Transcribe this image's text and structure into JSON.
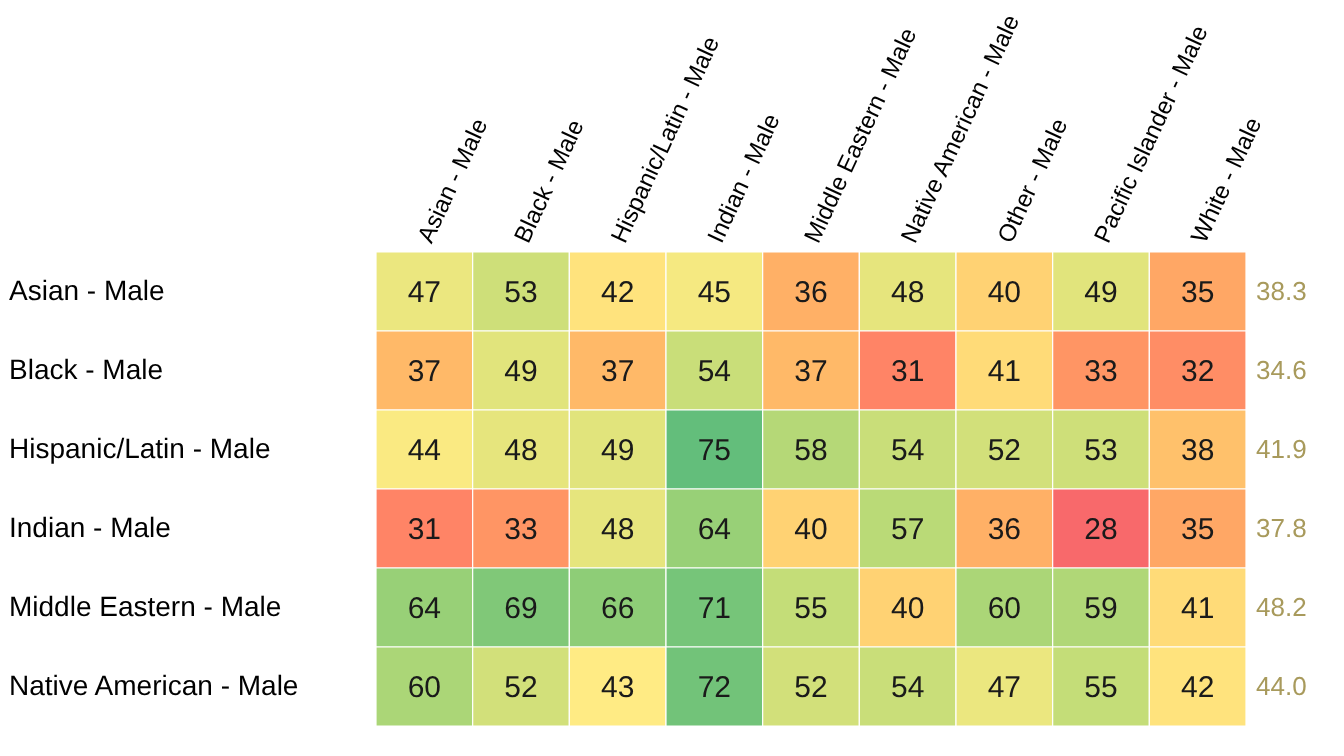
{
  "chart_data": {
    "type": "heatmap",
    "categories": [
      "Asian - Male",
      "Black - Male",
      "Hispanic/Latin - Male",
      "Indian - Male",
      "Middle Eastern - Male",
      "Native American - Male",
      "Other - Male",
      "Pacific Islander - Male",
      "White - Male"
    ],
    "y_categories": [
      "Asian - Male",
      "Black - Male",
      "Hispanic/Latin - Male",
      "Indian - Male",
      "Middle Eastern - Male",
      "Native American - Male"
    ],
    "y2_categories": [
      "38.3",
      "34.6",
      "41.9",
      "37.8",
      "48.2",
      "44.0"
    ],
    "cells": [
      [
        47,
        53,
        42,
        45,
        36,
        48,
        40,
        49,
        35
      ],
      [
        37,
        49,
        37,
        54,
        37,
        31,
        41,
        33,
        32
      ],
      [
        44,
        48,
        49,
        75,
        58,
        54,
        52,
        53,
        38
      ],
      [
        31,
        33,
        48,
        64,
        40,
        57,
        36,
        28,
        35
      ],
      [
        64,
        69,
        66,
        71,
        55,
        40,
        60,
        59,
        41
      ],
      [
        60,
        52,
        43,
        72,
        52,
        54,
        47,
        55,
        42
      ]
    ],
    "data_labels": true
  }
}
